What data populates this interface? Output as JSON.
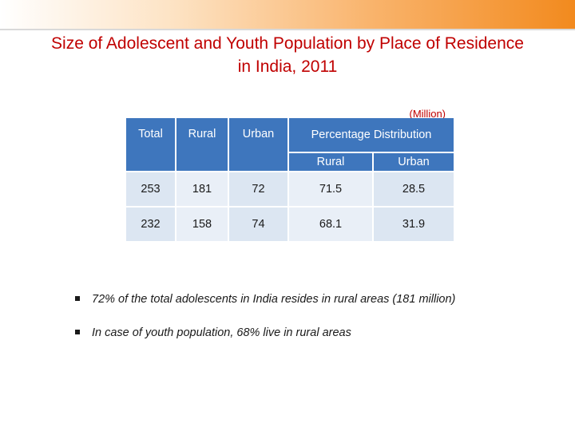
{
  "slide": {
    "title_line1": "Size of Adolescent and Youth Population by Place of Residence",
    "title_line2": "in India, 2011",
    "unit_note": "(Million)",
    "colors": {
      "title": "#c00000",
      "header": "#3e76bd",
      "cell": "#dce6f2",
      "accent": "#f28a1e"
    }
  },
  "table": {
    "headers": {
      "total": "Total",
      "rural": "Rural",
      "urban": "Urban",
      "percentage_distribution": "Percentage Distribution",
      "pct_rural": "Rural",
      "pct_urban": "Urban"
    },
    "rows": [
      {
        "total": "253",
        "rural": "181",
        "urban": "72",
        "pct_rural": "71.5",
        "pct_urban": "28.5"
      },
      {
        "total": "232",
        "rural": "158",
        "urban": "74",
        "pct_rural": "68.1",
        "pct_urban": "31.9"
      }
    ]
  },
  "bullets": [
    "72% of the total adolescents in India resides in rural areas (181 million)",
    "In case of youth population, 68% live in rural areas"
  ]
}
